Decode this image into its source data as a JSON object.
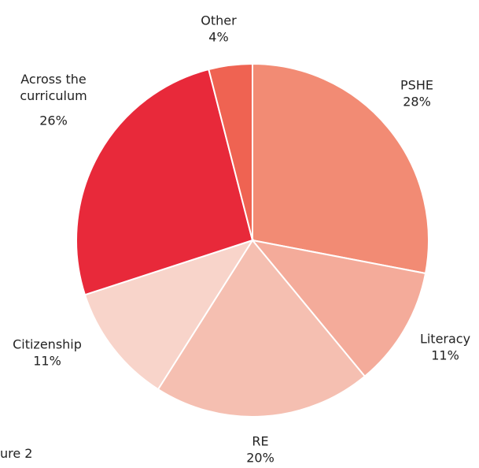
{
  "chart_data": {
    "type": "pie",
    "categories": [
      "PSHE",
      "Literacy",
      "RE",
      "Citizenship",
      "Across the curriculum",
      "Other"
    ],
    "values": [
      28,
      11,
      20,
      11,
      26,
      4
    ],
    "value_labels": [
      "28%",
      "11%",
      "20%",
      "11%",
      "26%",
      "4%"
    ],
    "colors": [
      "#f28b74",
      "#f4ab9a",
      "#f5bfb1",
      "#f8d4ca",
      "#e8293a",
      "#ef6352"
    ],
    "caption": "ure 2"
  }
}
